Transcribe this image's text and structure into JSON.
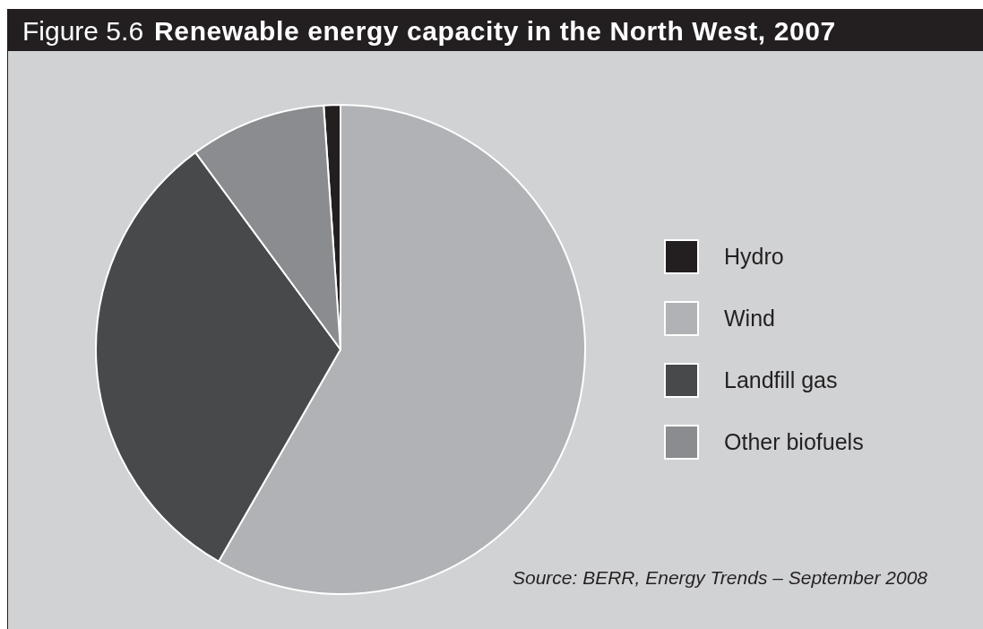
{
  "chart_data": {
    "type": "pie",
    "title": "Figure 5.6",
    "subtitle": "Renewable energy capacity in the North West, 2007",
    "categories": [
      "Hydro",
      "Wind",
      "Landfill gas",
      "Other biofuels"
    ],
    "values": [
      1.1,
      58.3,
      31.6,
      9.0
    ],
    "colors": [
      "#231f20",
      "#b1b2b5",
      "#48494b",
      "#8b8c8f"
    ],
    "legend": "right",
    "annotations": [
      "Source: BERR, Energy Trends – September 2008"
    ]
  }
}
